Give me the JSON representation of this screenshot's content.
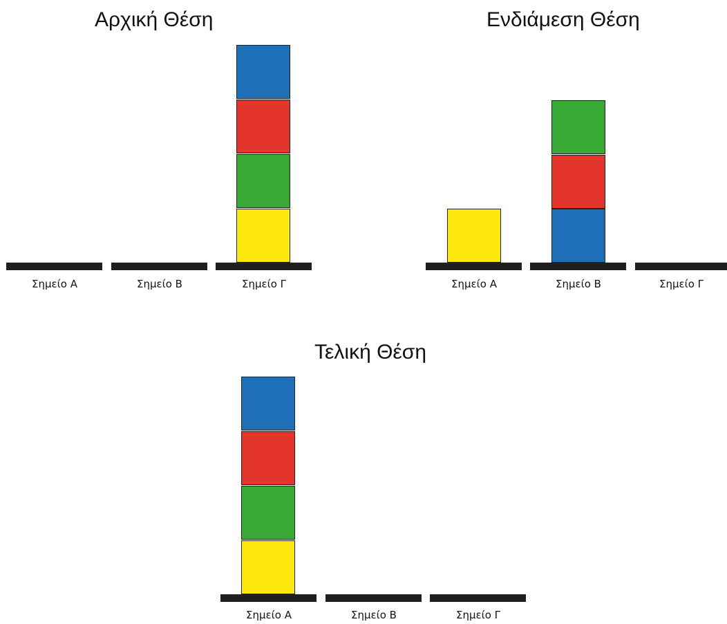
{
  "colors": {
    "blue": "#1f6fb8",
    "red": "#e3352b",
    "green": "#39a935",
    "yellow": "#fde90d",
    "base": "#1f1f1f"
  },
  "panels": [
    {
      "title": "Αρχική Θέση",
      "points": [
        {
          "label": "Σημείο Α",
          "stack_bottom_to_top": []
        },
        {
          "label": "Σημείο Β",
          "stack_bottom_to_top": []
        },
        {
          "label": "Σημείο Γ",
          "stack_bottom_to_top": [
            "yellow",
            "green",
            "red",
            "blue"
          ]
        }
      ]
    },
    {
      "title": "Ενδιάμεση Θέση",
      "points": [
        {
          "label": "Σημείο Α",
          "stack_bottom_to_top": [
            "yellow"
          ]
        },
        {
          "label": "Σημείο Β",
          "stack_bottom_to_top": [
            "blue",
            "red",
            "green"
          ]
        },
        {
          "label": "Σημείο Γ",
          "stack_bottom_to_top": []
        }
      ]
    },
    {
      "title": "Τελική Θέση",
      "points": [
        {
          "label": "Σημείο Α",
          "stack_bottom_to_top": [
            "yellow",
            "green",
            "red",
            "blue"
          ]
        },
        {
          "label": "Σημείο Β",
          "stack_bottom_to_top": []
        },
        {
          "label": "Σημείο Γ",
          "stack_bottom_to_top": []
        }
      ]
    }
  ]
}
